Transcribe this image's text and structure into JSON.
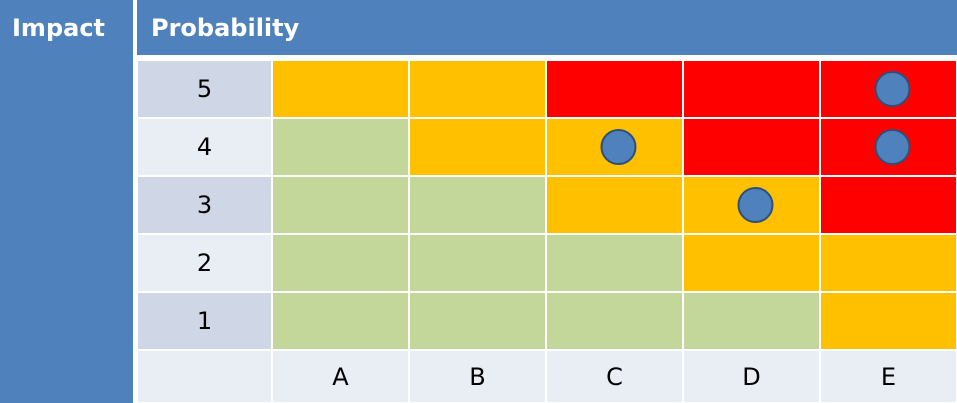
{
  "header": {
    "left": "Impact",
    "top": "Probability"
  },
  "colors": {
    "header": "#4f81bd",
    "label_dark": "#cfd7e6",
    "label_light": "#e9edf4",
    "orange": "#ffc000",
    "red": "#ff0000",
    "green": "#c4d79b",
    "marker": "#4f81bd",
    "marker_edge": "#2f4f7a"
  },
  "columns": [
    "A",
    "B",
    "C",
    "D",
    "E"
  ],
  "rows": [
    {
      "label": "5",
      "cells": [
        "orange",
        "orange",
        "red",
        "red",
        "red"
      ]
    },
    {
      "label": "4",
      "cells": [
        "green",
        "orange",
        "orange",
        "red",
        "red"
      ]
    },
    {
      "label": "3",
      "cells": [
        "green",
        "green",
        "orange",
        "orange",
        "red"
      ]
    },
    {
      "label": "2",
      "cells": [
        "green",
        "green",
        "green",
        "orange",
        "orange"
      ]
    },
    {
      "label": "1",
      "cells": [
        "green",
        "green",
        "green",
        "green",
        "orange"
      ]
    }
  ],
  "markers": [
    {
      "row": "5",
      "column": "E"
    },
    {
      "row": "4",
      "column": "C"
    },
    {
      "row": "4",
      "column": "E"
    },
    {
      "row": "3",
      "column": "D"
    }
  ]
}
